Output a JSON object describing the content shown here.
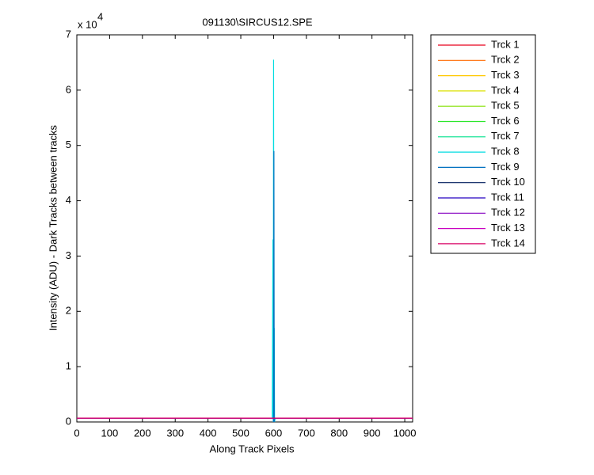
{
  "chart_data": {
    "type": "line",
    "title": "091130\\SIRCUS12.SPE",
    "x_label": "Along Track Pixels",
    "y_label": "Intensity (ADU) - Dark Tracks between tracks",
    "axis_multiplier": {
      "base": "x 10",
      "exponent": "4"
    },
    "x": [
      0,
      596,
      598,
      599,
      600,
      601,
      602,
      603,
      605,
      1024
    ],
    "series": [
      {
        "name": "Trck 1",
        "color": "#e8001c",
        "values": [
          0.07,
          0.07,
          0.07,
          0.07,
          0.07,
          0.07,
          0.07,
          0.07,
          0.07,
          0.07
        ]
      },
      {
        "name": "Trck 2",
        "color": "#ff6a00",
        "values": [
          0.07,
          0.07,
          0.07,
          0.07,
          0.07,
          0.07,
          0.07,
          0.07,
          0.07,
          0.07
        ]
      },
      {
        "name": "Trck 3",
        "color": "#ffc800",
        "values": [
          0.07,
          0.07,
          0.07,
          0.07,
          0.07,
          0.07,
          0.07,
          0.07,
          0.07,
          0.07
        ]
      },
      {
        "name": "Trck 4",
        "color": "#dce000",
        "values": [
          0.07,
          0.07,
          0.07,
          0.07,
          0.07,
          0.07,
          0.07,
          0.07,
          0.07,
          0.07
        ]
      },
      {
        "name": "Trck 5",
        "color": "#84e000",
        "values": [
          0.07,
          0.07,
          0.07,
          0.07,
          0.07,
          0.07,
          0.07,
          0.07,
          0.07,
          0.07
        ]
      },
      {
        "name": "Trck 6",
        "color": "#2ce62c",
        "values": [
          0.07,
          0.07,
          0.07,
          0.07,
          0.07,
          0.07,
          0.07,
          0.07,
          0.07,
          0.07
        ]
      },
      {
        "name": "Trck 7",
        "color": "#00e08c",
        "values": [
          0.07,
          0.07,
          0.07,
          0.07,
          0.07,
          0.07,
          0.07,
          0.07,
          0.07,
          0.07
        ]
      },
      {
        "name": "Trck 8",
        "color": "#00dce0",
        "values": [
          0.07,
          0.07,
          3.3,
          0,
          6.55,
          0,
          1.7,
          0,
          0.07,
          0.07
        ]
      },
      {
        "name": "Trck 9",
        "color": "#0070c0",
        "values": [
          0.07,
          0.07,
          0.07,
          0.07,
          0,
          4.9,
          0,
          0.07,
          0.07,
          0.07
        ]
      },
      {
        "name": "Trck 10",
        "color": "#001c5c",
        "values": [
          0.07,
          0.07,
          0.07,
          0.07,
          0.07,
          0.07,
          0.07,
          0.07,
          0.07,
          0.07
        ]
      },
      {
        "name": "Trck 11",
        "color": "#2400c0",
        "values": [
          0.07,
          0.07,
          0.07,
          0.07,
          0.07,
          0.07,
          0.07,
          0.07,
          0.07,
          0.07
        ]
      },
      {
        "name": "Trck 12",
        "color": "#8400c0",
        "values": [
          0.07,
          0.07,
          0.07,
          0.07,
          0.07,
          0.07,
          0.07,
          0.07,
          0.07,
          0.07
        ]
      },
      {
        "name": "Trck 13",
        "color": "#c800c0",
        "values": [
          0.07,
          0.07,
          0.07,
          0.07,
          0.07,
          0.07,
          0.07,
          0.07,
          0.07,
          0.07
        ]
      },
      {
        "name": "Trck 14",
        "color": "#d80064",
        "values": [
          0.07,
          0.07,
          0.07,
          0.07,
          0.07,
          0.07,
          0.07,
          0.07,
          0.07,
          0.07
        ]
      }
    ],
    "xlim": [
      0,
      1024
    ],
    "xticks": [
      0,
      100,
      200,
      300,
      400,
      500,
      600,
      700,
      800,
      900,
      1000
    ],
    "ylim": [
      0,
      7
    ],
    "yticks": [
      0,
      1,
      2,
      3,
      4,
      5,
      6,
      7
    ],
    "grid": false,
    "legend_position": "outside-right"
  }
}
